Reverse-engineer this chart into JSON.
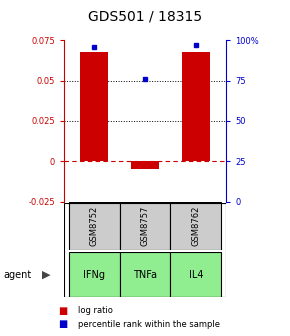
{
  "title": "GDS501 / 18315",
  "samples": [
    "GSM8752",
    "GSM8757",
    "GSM8762"
  ],
  "agents": [
    "IFNg",
    "TNFa",
    "IL4"
  ],
  "log_ratios": [
    0.068,
    -0.005,
    0.068
  ],
  "percentile_ranks": [
    96,
    76,
    97
  ],
  "bar_color": "#cc0000",
  "dot_color": "#0000cc",
  "ylim_left": [
    -0.025,
    0.075
  ],
  "ylim_right": [
    0,
    100
  ],
  "yticks_left": [
    -0.025,
    0,
    0.025,
    0.05,
    0.075
  ],
  "yticks_right": [
    0,
    25,
    50,
    75,
    100
  ],
  "ytick_labels_left": [
    "-0.025",
    "0",
    "0.025",
    "0.05",
    "0.075"
  ],
  "ytick_labels_right": [
    "0",
    "25",
    "50",
    "75",
    "100%"
  ],
  "grid_values": [
    0.025,
    0.05
  ],
  "bar_width": 0.55,
  "agent_colors": [
    "#90ee90",
    "#90ee90",
    "#90ee90"
  ],
  "sample_box_color": "#cccccc",
  "left_axis_color": "#cc0000",
  "right_axis_color": "#0000cc"
}
